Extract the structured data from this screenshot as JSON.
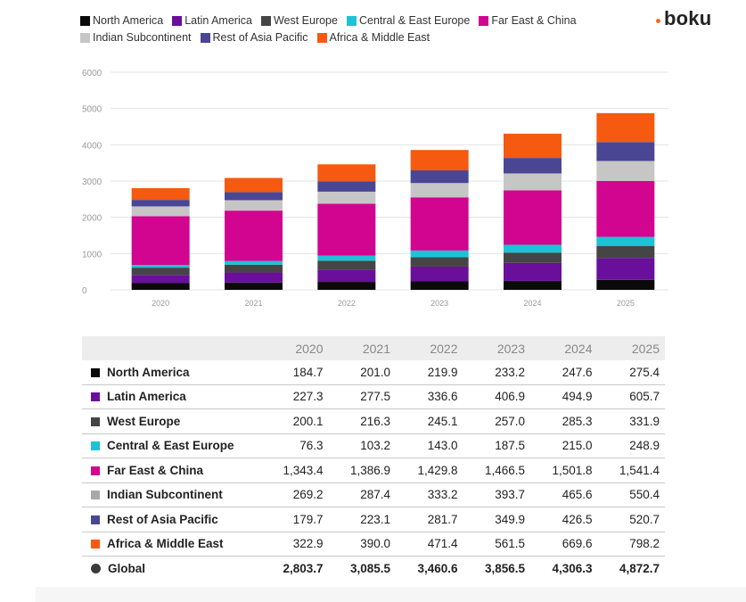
{
  "brand": {
    "name": "boku"
  },
  "chart_data": {
    "type": "bar",
    "stacked": true,
    "categories": [
      "2020",
      "2021",
      "2022",
      "2023",
      "2024",
      "2025"
    ],
    "ylim": [
      0,
      6000
    ],
    "yticks": [
      "0",
      "1000",
      "2000",
      "3000",
      "4000",
      "5000",
      "6000"
    ],
    "grid": true,
    "legend_position": "top",
    "series": [
      {
        "name": "North America",
        "color": "#0a0a0a",
        "values": [
          184.7,
          201.0,
          219.9,
          233.2,
          247.6,
          275.4
        ]
      },
      {
        "name": "Latin America",
        "color": "#6a0f9c",
        "values": [
          227.3,
          277.5,
          336.6,
          406.9,
          494.9,
          605.7
        ]
      },
      {
        "name": "West Europe",
        "color": "#454545",
        "values": [
          200.1,
          216.3,
          245.1,
          257.0,
          285.3,
          331.9
        ]
      },
      {
        "name": "Central & East Europe",
        "color": "#1ec2d6",
        "values": [
          76.3,
          103.2,
          143.0,
          187.5,
          215.0,
          248.9
        ]
      },
      {
        "name": "Far East & China",
        "color": "#d1058f",
        "values": [
          1343.4,
          1386.9,
          1429.8,
          1466.5,
          1501.8,
          1541.4
        ]
      },
      {
        "name": "Indian Subcontinent",
        "color": "#c6c6c6",
        "values": [
          269.2,
          287.4,
          333.2,
          393.7,
          465.6,
          550.4
        ]
      },
      {
        "name": "Rest of Asia Pacific",
        "color": "#4a4694",
        "values": [
          179.7,
          223.1,
          281.7,
          349.9,
          426.5,
          520.7
        ]
      },
      {
        "name": "Africa & Middle East",
        "color": "#f55a10",
        "values": [
          322.9,
          390.0,
          471.4,
          561.5,
          669.6,
          798.2
        ]
      }
    ]
  },
  "table": {
    "columns": [
      "2020",
      "2021",
      "2022",
      "2023",
      "2024",
      "2025"
    ],
    "rows": [
      {
        "label": "North America",
        "color": "#0a0a0a",
        "values": [
          "184.7",
          "201.0",
          "219.9",
          "233.2",
          "247.6",
          "275.4"
        ]
      },
      {
        "label": "Latin America",
        "color": "#6a0f9c",
        "values": [
          "227.3",
          "277.5",
          "336.6",
          "406.9",
          "494.9",
          "605.7"
        ]
      },
      {
        "label": "West Europe",
        "color": "#454545",
        "values": [
          "200.1",
          "216.3",
          "245.1",
          "257.0",
          "285.3",
          "331.9"
        ]
      },
      {
        "label": "Central & East Europe",
        "color": "#1ec2d6",
        "values": [
          "76.3",
          "103.2",
          "143.0",
          "187.5",
          "215.0",
          "248.9"
        ]
      },
      {
        "label": "Far East & China",
        "color": "#d1058f",
        "values": [
          "1,343.4",
          "1,386.9",
          "1,429.8",
          "1,466.5",
          "1,501.8",
          "1,541.4"
        ]
      },
      {
        "label": "Indian Subcontinent",
        "color": "#a8a8a8",
        "values": [
          "269.2",
          "287.4",
          "333.2",
          "393.7",
          "465.6",
          "550.4"
        ]
      },
      {
        "label": "Rest of Asia Pacific",
        "color": "#4a4694",
        "values": [
          "179.7",
          "223.1",
          "281.7",
          "349.9",
          "426.5",
          "520.7"
        ]
      },
      {
        "label": "Africa & Middle East",
        "color": "#f55a10",
        "values": [
          "322.9",
          "390.0",
          "471.4",
          "561.5",
          "669.6",
          "798.2"
        ]
      }
    ],
    "total": {
      "label": "Global",
      "values": [
        "2,803.7",
        "3,085.5",
        "3,460.6",
        "3,856.5",
        "4,306.3",
        "4,872.7"
      ]
    }
  }
}
